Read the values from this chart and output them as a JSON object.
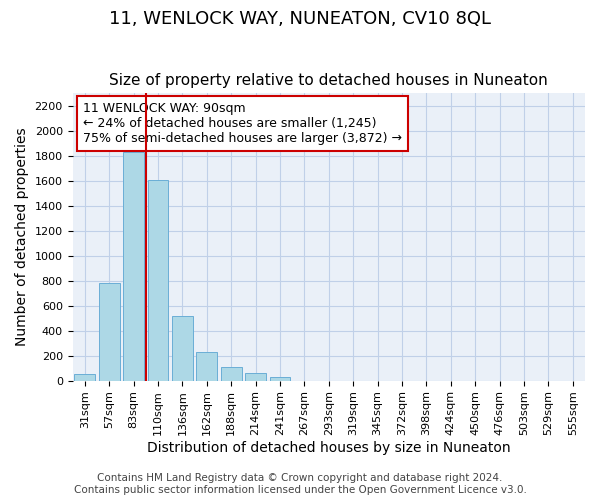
{
  "title": "11, WENLOCK WAY, NUNEATON, CV10 8QL",
  "subtitle": "Size of property relative to detached houses in Nuneaton",
  "xlabel": "Distribution of detached houses by size in Nuneaton",
  "ylabel": "Number of detached properties",
  "bar_values": [
    50,
    780,
    1830,
    1610,
    520,
    230,
    110,
    60,
    30,
    0,
    0,
    0,
    0,
    0,
    0,
    0,
    0,
    0,
    0,
    0,
    0
  ],
  "bar_labels": [
    "31sqm",
    "57sqm",
    "83sqm",
    "110sqm",
    "136sqm",
    "162sqm",
    "188sqm",
    "214sqm",
    "241sqm",
    "267sqm",
    "293sqm",
    "319sqm",
    "345sqm",
    "372sqm",
    "398sqm",
    "424sqm",
    "450sqm",
    "476sqm",
    "503sqm",
    "529sqm",
    "555sqm"
  ],
  "bar_color": "#add8e6",
  "bar_edge_color": "#6aaed6",
  "vline_x_index": 2,
  "vline_color": "#cc0000",
  "annotation_title": "11 WENLOCK WAY: 90sqm",
  "annotation_line1": "← 24% of detached houses are smaller (1,245)",
  "annotation_line2": "75% of semi-detached houses are larger (3,872) →",
  "annotation_box_color": "#ffffff",
  "annotation_box_edge_color": "#cc0000",
  "ylim": [
    0,
    2300
  ],
  "yticks": [
    0,
    200,
    400,
    600,
    800,
    1000,
    1200,
    1400,
    1600,
    1800,
    2000,
    2200
  ],
  "footer_line1": "Contains HM Land Registry data © Crown copyright and database right 2024.",
  "footer_line2": "Contains public sector information licensed under the Open Government Licence v3.0.",
  "title_fontsize": 13,
  "subtitle_fontsize": 11,
  "xlabel_fontsize": 10,
  "ylabel_fontsize": 10,
  "footer_fontsize": 7.5,
  "tick_fontsize": 8,
  "annotation_fontsize": 9,
  "grid_color": "#c0d0e8",
  "background_color": "#eaf0f8"
}
